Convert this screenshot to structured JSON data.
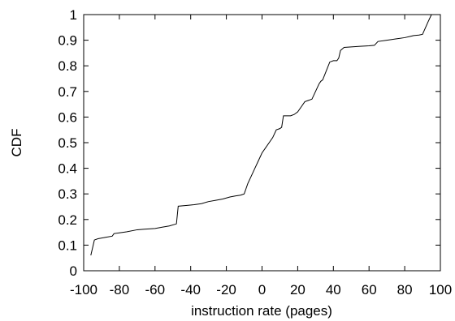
{
  "chart_data": {
    "type": "line",
    "title": "",
    "xlabel": "instruction rate (pages)",
    "ylabel": "CDF",
    "xlim": [
      -100,
      100
    ],
    "ylim": [
      0,
      1
    ],
    "x_ticks": [
      "-100",
      "-80",
      "-60",
      "-40",
      "-20",
      "0",
      "20",
      "40",
      "60",
      "80",
      "100"
    ],
    "y_ticks": [
      "0",
      "0.1",
      "0.2",
      "0.3",
      "0.4",
      "0.5",
      "0.6",
      "0.7",
      "0.8",
      "0.9",
      "1"
    ],
    "grid": false,
    "legend": "none",
    "line_color": "#000000",
    "series": [
      {
        "x": [
          -96,
          -94,
          -92,
          -88,
          -84,
          -83,
          -80,
          -76,
          -70,
          -66,
          -60,
          -56,
          -52,
          -48,
          -47,
          -42,
          -38,
          -34,
          -30,
          -26,
          -22,
          -18,
          -15,
          -12,
          -10,
          -9,
          -8,
          -6,
          -4,
          -2,
          0,
          2,
          4,
          6,
          8,
          10,
          11,
          12,
          13,
          16,
          18,
          20,
          22,
          24,
          26,
          28,
          30,
          32,
          33,
          34,
          36,
          38,
          40,
          42,
          43,
          44,
          46,
          50,
          55,
          60,
          63,
          65,
          70,
          75,
          80,
          85,
          88,
          90,
          93,
          95
        ],
        "y": [
          0.06,
          0.12,
          0.125,
          0.13,
          0.135,
          0.145,
          0.148,
          0.152,
          0.16,
          0.162,
          0.165,
          0.17,
          0.175,
          0.183,
          0.252,
          0.255,
          0.258,
          0.262,
          0.27,
          0.275,
          0.28,
          0.288,
          0.292,
          0.295,
          0.3,
          0.32,
          0.34,
          0.37,
          0.4,
          0.43,
          0.46,
          0.48,
          0.5,
          0.52,
          0.55,
          0.555,
          0.56,
          0.605,
          0.605,
          0.605,
          0.61,
          0.62,
          0.64,
          0.66,
          0.665,
          0.67,
          0.7,
          0.73,
          0.74,
          0.745,
          0.78,
          0.815,
          0.82,
          0.82,
          0.83,
          0.86,
          0.872,
          0.874,
          0.876,
          0.878,
          0.88,
          0.895,
          0.9,
          0.905,
          0.91,
          0.918,
          0.92,
          0.923,
          0.97,
          1.0
        ]
      }
    ]
  }
}
